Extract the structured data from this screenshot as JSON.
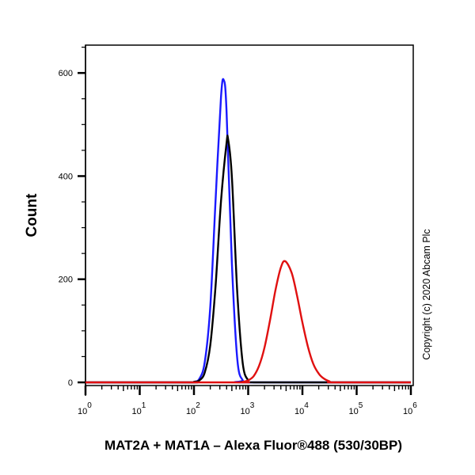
{
  "chart_data": {
    "type": "line",
    "title": "",
    "xlabel": "MAT2A + MAT1A – Alexa Fluor®488 (530/30BP)",
    "ylabel": "Count",
    "xscale": "log",
    "xlim": [
      1,
      1000000
    ],
    "ylim": [
      0,
      654
    ],
    "x_tick_labels": [
      {
        "base": "10",
        "exp": "0"
      },
      {
        "base": "10",
        "exp": "1"
      },
      {
        "base": "10",
        "exp": "2"
      },
      {
        "base": "10",
        "exp": "3"
      },
      {
        "base": "10",
        "exp": "4"
      },
      {
        "base": "10",
        "exp": "5"
      },
      {
        "base": "10",
        "exp": "6"
      }
    ],
    "y_ticks": [
      0,
      200,
      400,
      600
    ],
    "grid": false,
    "legend": "none",
    "annotation": "Copyright (c) 2020 Abcam Plc",
    "series": [
      {
        "color": "#1a1aff",
        "points": [
          [
            1,
            0
          ],
          [
            80,
            0
          ],
          [
            100,
            1
          ],
          [
            126,
            7
          ],
          [
            158,
            39
          ],
          [
            200,
            146
          ],
          [
            251,
            356
          ],
          [
            316,
            554
          ],
          [
            355,
            586
          ],
          [
            398,
            528
          ],
          [
            501,
            231
          ],
          [
            631,
            44
          ],
          [
            794,
            4
          ],
          [
            1000,
            0
          ],
          [
            1000000,
            0
          ]
        ]
      },
      {
        "color": "#000000",
        "points": [
          [
            1,
            0
          ],
          [
            80,
            0
          ],
          [
            100,
            1
          ],
          [
            126,
            4
          ],
          [
            158,
            19
          ],
          [
            200,
            72
          ],
          [
            251,
            189
          ],
          [
            316,
            352
          ],
          [
            398,
            463
          ],
          [
            427,
            471
          ],
          [
            501,
            398
          ],
          [
            631,
            172
          ],
          [
            794,
            37
          ],
          [
            1000,
            4
          ],
          [
            1259,
            0
          ],
          [
            1000000,
            0
          ]
        ]
      },
      {
        "color": "#e01010",
        "points": [
          [
            1,
            0
          ],
          [
            600,
            0
          ],
          [
            794,
            1
          ],
          [
            1000,
            4
          ],
          [
            1259,
            12
          ],
          [
            1585,
            32
          ],
          [
            1995,
            67
          ],
          [
            2512,
            119
          ],
          [
            3162,
            177
          ],
          [
            3981,
            222
          ],
          [
            4786,
            235
          ],
          [
            6310,
            213
          ],
          [
            7943,
            169
          ],
          [
            10000,
            116
          ],
          [
            12589,
            70
          ],
          [
            15849,
            36
          ],
          [
            19953,
            17
          ],
          [
            25119,
            7
          ],
          [
            31623,
            2
          ],
          [
            39811,
            0
          ],
          [
            1000000,
            0
          ]
        ]
      }
    ]
  }
}
